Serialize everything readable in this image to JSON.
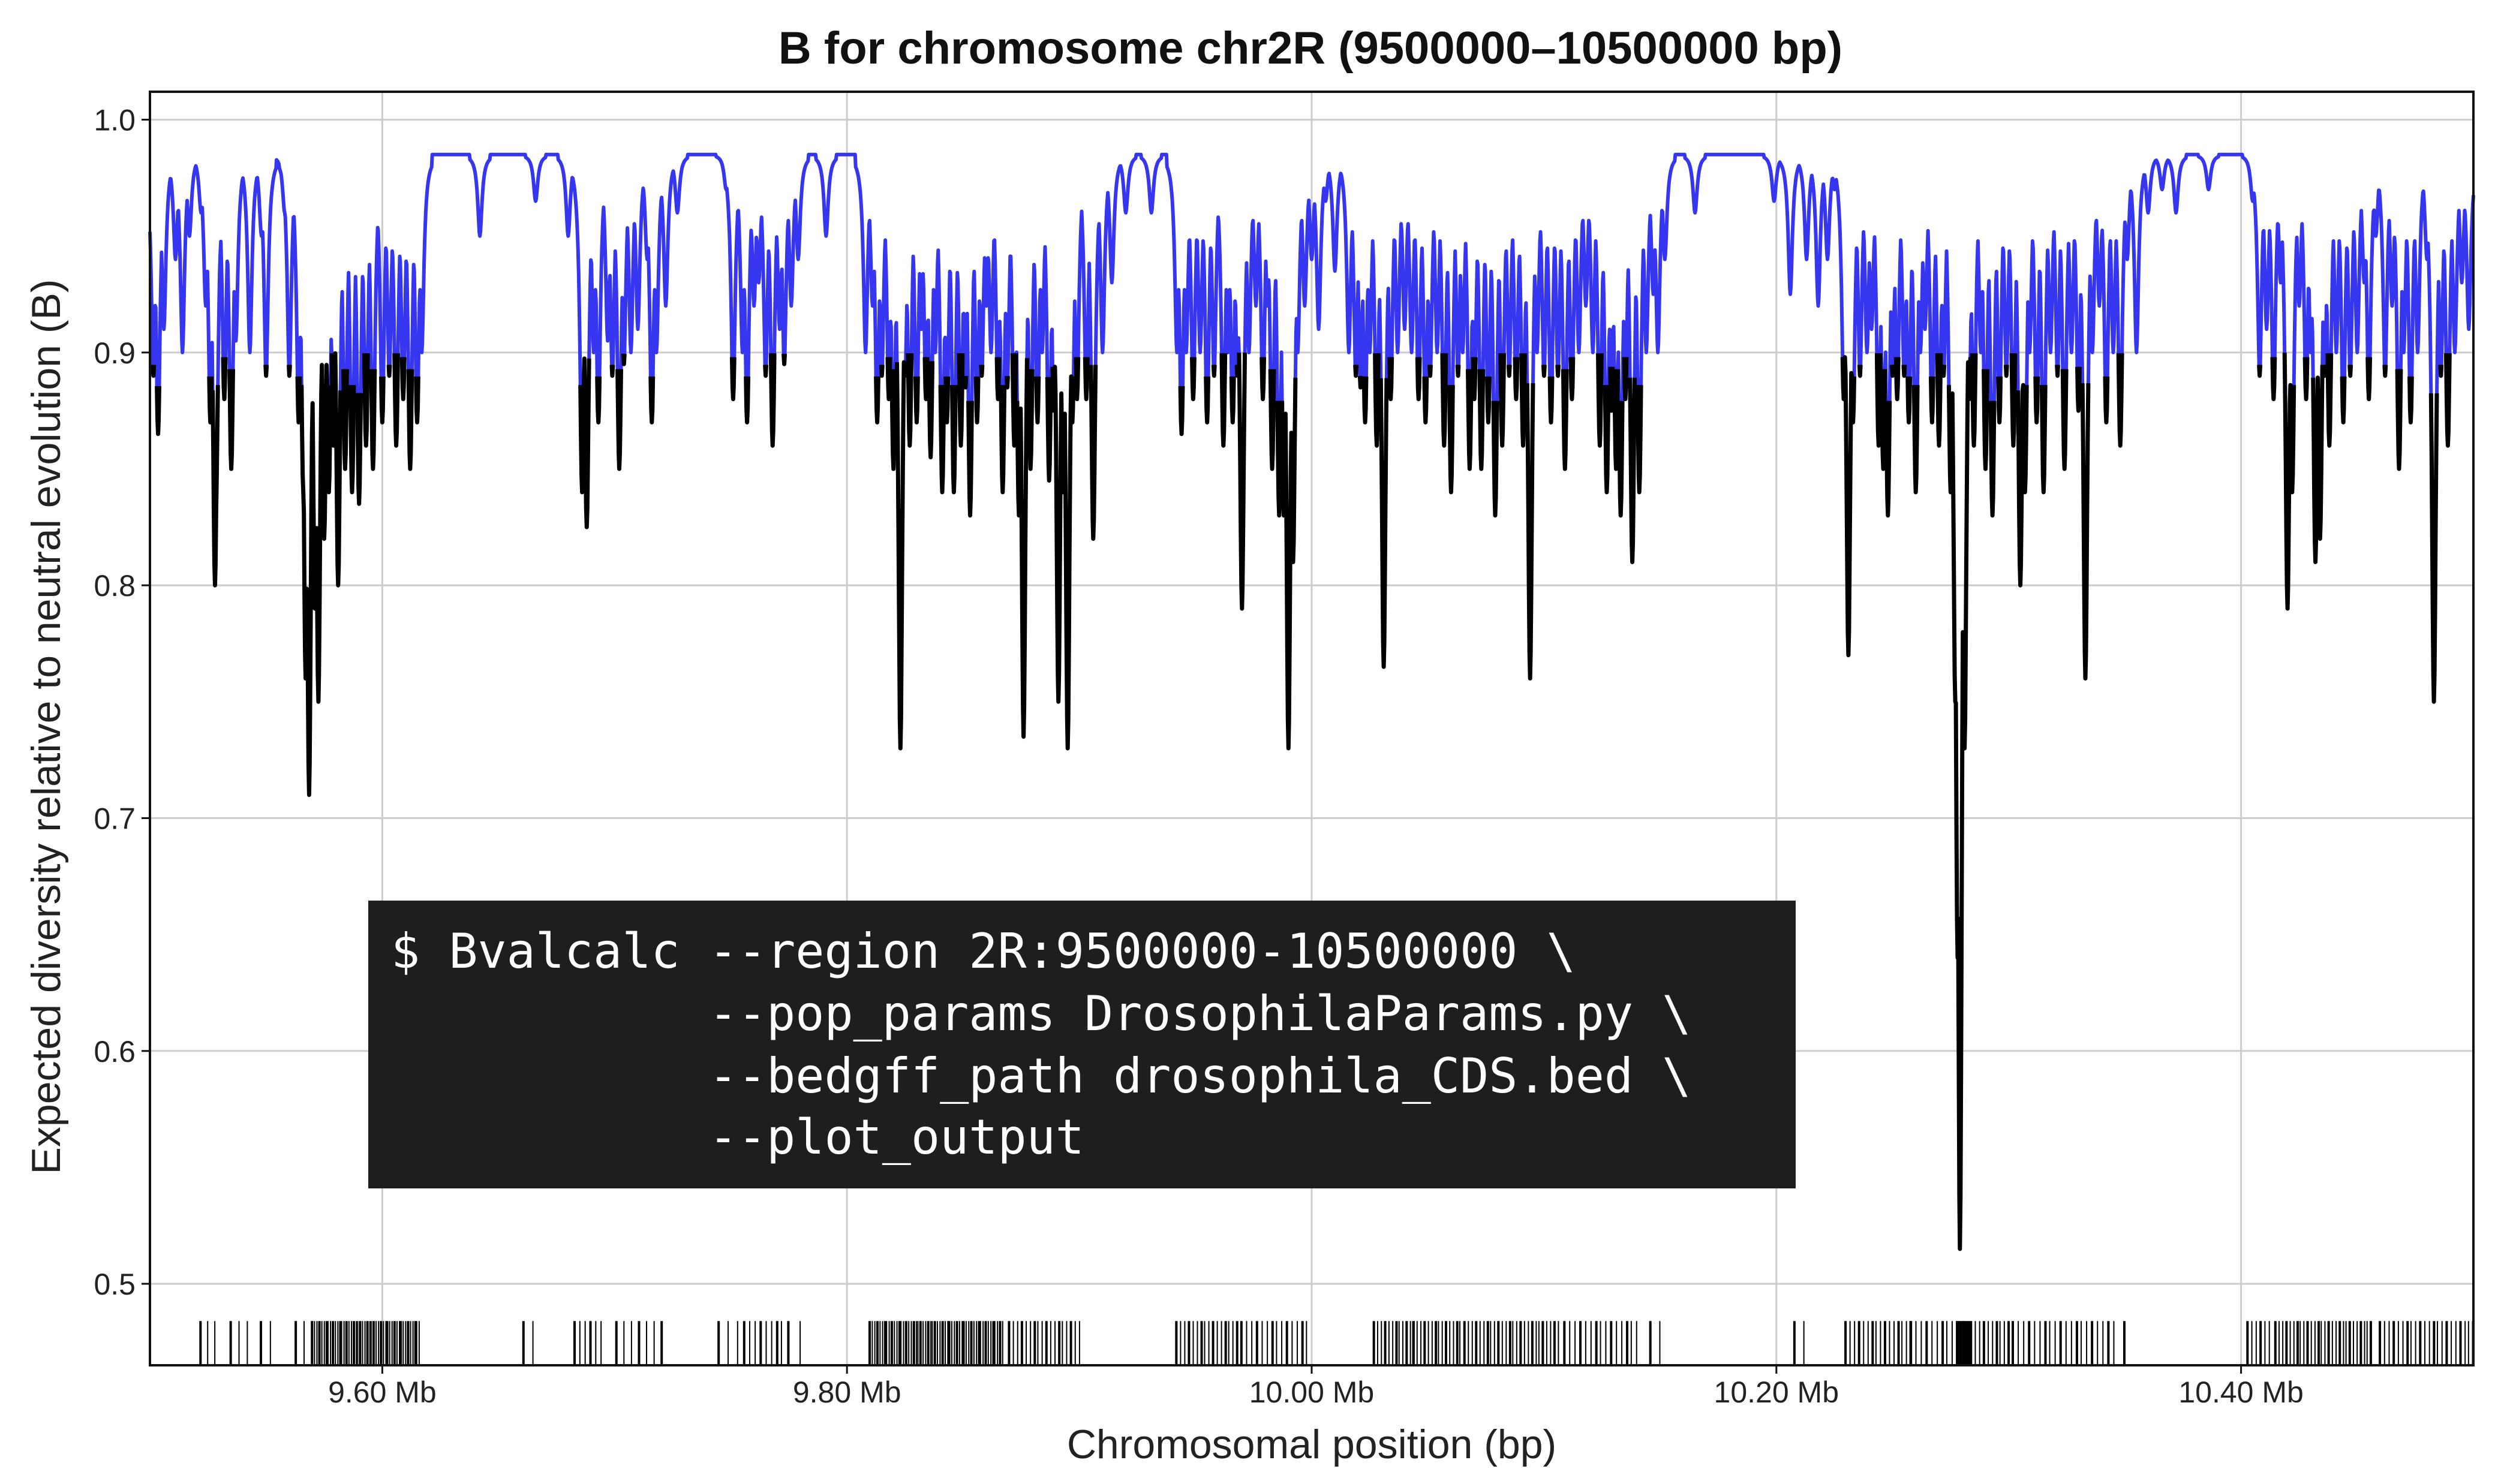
{
  "chart_data": {
    "type": "line",
    "title": "B for chromosome chr2R (9500000–10500000 bp)",
    "xlabel": "Chromosomal position (bp)",
    "ylabel": "Expected diversity relative to neutral evolution (B)",
    "xlim": [
      9500000,
      10500000
    ],
    "ylim": [
      0.465,
      1.012
    ],
    "grid": true,
    "x_ticks": [
      {
        "value": 9600000,
        "label": "9.60 Mb"
      },
      {
        "value": 9800000,
        "label": "9.80 Mb"
      },
      {
        "value": 10000000,
        "label": "10.00 Mb"
      },
      {
        "value": 10200000,
        "label": "10.20 Mb"
      },
      {
        "value": 10400000,
        "label": "10.40 Mb"
      }
    ],
    "y_ticks": [
      {
        "value": 0.5,
        "label": "0.5"
      },
      {
        "value": 0.6,
        "label": "0.6"
      },
      {
        "value": 0.7,
        "label": "0.7"
      },
      {
        "value": 0.8,
        "label": "0.8"
      },
      {
        "value": 0.9,
        "label": "0.9"
      },
      {
        "value": 1.0,
        "label": "1.0"
      }
    ],
    "colors": {
      "b_line": "#3636f0",
      "b_dip": "#000000",
      "cds_ticks": "#000000",
      "grid": "#cccccc"
    },
    "plateau": 0.985,
    "dips": [
      [
        9501500,
        0.89
      ],
      [
        9503500,
        0.865
      ],
      [
        9506000,
        0.91
      ],
      [
        9511000,
        0.94
      ],
      [
        9514000,
        0.9
      ],
      [
        9517000,
        0.95
      ],
      [
        9522000,
        0.96
      ],
      [
        9524000,
        0.92
      ],
      [
        9526000,
        0.87
      ],
      [
        9530000,
        0.94
      ],
      [
        9528500,
        0.84
      ],
      [
        9528000,
        0.8
      ],
      [
        9532000,
        0.88
      ],
      [
        9535000,
        0.85
      ],
      [
        9537000,
        0.905
      ],
      [
        9543000,
        0.9
      ],
      [
        9548000,
        0.95
      ],
      [
        9550000,
        0.89
      ],
      [
        9558000,
        0.96
      ],
      [
        9560000,
        0.89
      ],
      [
        9564000,
        0.87
      ],
      [
        9566000,
        0.84
      ],
      [
        9567000,
        0.76
      ],
      [
        9568500,
        0.71
      ],
      [
        9571000,
        0.79
      ],
      [
        9572500,
        0.75
      ],
      [
        9575000,
        0.82
      ],
      [
        9577000,
        0.84
      ],
      [
        9579000,
        0.86
      ],
      [
        9581000,
        0.8
      ],
      [
        9584000,
        0.85
      ],
      [
        9587000,
        0.84
      ],
      [
        9590000,
        0.835
      ],
      [
        9593000,
        0.86
      ],
      [
        9596000,
        0.85
      ],
      [
        9600000,
        0.87
      ],
      [
        9603000,
        0.89
      ],
      [
        9606000,
        0.86
      ],
      [
        9609000,
        0.88
      ],
      [
        9612000,
        0.85
      ],
      [
        9615000,
        0.87
      ],
      [
        9617000,
        0.9
      ],
      [
        9642000,
        0.95
      ],
      [
        9666000,
        0.965
      ],
      [
        9680000,
        0.95
      ],
      [
        9686000,
        0.84
      ],
      [
        9688000,
        0.825
      ],
      [
        9691000,
        0.9
      ],
      [
        9693000,
        0.87
      ],
      [
        9697000,
        0.905
      ],
      [
        9699000,
        0.89
      ],
      [
        9702000,
        0.85
      ],
      [
        9704000,
        0.895
      ],
      [
        9707000,
        0.9
      ],
      [
        9710000,
        0.91
      ],
      [
        9714000,
        0.94
      ],
      [
        9716000,
        0.87
      ],
      [
        9718000,
        0.9
      ],
      [
        9722000,
        0.92
      ],
      [
        9727000,
        0.96
      ],
      [
        9748000,
        0.97
      ],
      [
        9751000,
        0.88
      ],
      [
        9755000,
        0.9
      ],
      [
        9757000,
        0.87
      ],
      [
        9760000,
        0.92
      ],
      [
        9762000,
        0.93
      ],
      [
        9765000,
        0.89
      ],
      [
        9768000,
        0.86
      ],
      [
        9771000,
        0.91
      ],
      [
        9773000,
        0.895
      ],
      [
        9776000,
        0.92
      ],
      [
        9779000,
        0.94
      ],
      [
        9791000,
        0.95
      ],
      [
        9808000,
        0.9
      ],
      [
        9811000,
        0.92
      ],
      [
        9813000,
        0.87
      ],
      [
        9815000,
        0.89
      ],
      [
        9818000,
        0.88
      ],
      [
        9820000,
        0.85
      ],
      [
        9823000,
        0.73
      ],
      [
        9825000,
        0.89
      ],
      [
        9827000,
        0.86
      ],
      [
        9830000,
        0.87
      ],
      [
        9832000,
        0.91
      ],
      [
        9834000,
        0.88
      ],
      [
        9836000,
        0.855
      ],
      [
        9838000,
        0.9
      ],
      [
        9841000,
        0.84
      ],
      [
        9843000,
        0.87
      ],
      [
        9846000,
        0.84
      ],
      [
        9849000,
        0.86
      ],
      [
        9851000,
        0.885
      ],
      [
        9853000,
        0.83
      ],
      [
        9856000,
        0.87
      ],
      [
        9858000,
        0.89
      ],
      [
        9860000,
        0.92
      ],
      [
        9862000,
        0.9
      ],
      [
        9865000,
        0.88
      ],
      [
        9867000,
        0.84
      ],
      [
        9869000,
        0.885
      ],
      [
        9872000,
        0.86
      ],
      [
        9874000,
        0.83
      ],
      [
        9876000,
        0.735
      ],
      [
        9879000,
        0.85
      ],
      [
        9882000,
        0.87
      ],
      [
        9884000,
        0.9
      ],
      [
        9887000,
        0.845
      ],
      [
        9889000,
        0.875
      ],
      [
        9891000,
        0.75
      ],
      [
        9893000,
        0.84
      ],
      [
        9895000,
        0.73
      ],
      [
        9897000,
        0.87
      ],
      [
        9899000,
        0.88
      ],
      [
        9903000,
        0.88
      ],
      [
        9906000,
        0.82
      ],
      [
        9910000,
        0.9
      ],
      [
        9914000,
        0.93
      ],
      [
        9920000,
        0.96
      ],
      [
        9931000,
        0.96
      ],
      [
        9942000,
        0.9
      ],
      [
        9944000,
        0.865
      ],
      [
        9946000,
        0.9
      ],
      [
        9949000,
        0.88
      ],
      [
        9952000,
        0.9
      ],
      [
        9955000,
        0.87
      ],
      [
        9958000,
        0.89
      ],
      [
        9962000,
        0.86
      ],
      [
        9964000,
        0.9
      ],
      [
        9966000,
        0.87
      ],
      [
        9968000,
        0.89
      ],
      [
        9970000,
        0.79
      ],
      [
        9973000,
        0.9
      ],
      [
        9976000,
        0.92
      ],
      [
        9979000,
        0.88
      ],
      [
        9981000,
        0.92
      ],
      [
        9983000,
        0.85
      ],
      [
        9986000,
        0.83
      ],
      [
        9988000,
        0.83
      ],
      [
        9990000,
        0.73
      ],
      [
        9992000,
        0.81
      ],
      [
        9994000,
        0.9
      ],
      [
        9997000,
        0.92
      ],
      [
        10000000,
        0.94
      ],
      [
        10003000,
        0.91
      ],
      [
        10006000,
        0.965
      ],
      [
        10010000,
        0.935
      ],
      [
        10016000,
        0.9
      ],
      [
        10019000,
        0.89
      ],
      [
        10021000,
        0.885
      ],
      [
        10023000,
        0.87
      ],
      [
        10025000,
        0.9
      ],
      [
        10028000,
        0.86
      ],
      [
        10031000,
        0.765
      ],
      [
        10034000,
        0.88
      ],
      [
        10037000,
        0.9
      ],
      [
        10040000,
        0.91
      ],
      [
        10043000,
        0.9
      ],
      [
        10046000,
        0.88
      ],
      [
        10049000,
        0.87
      ],
      [
        10051000,
        0.89
      ],
      [
        10054000,
        0.9
      ],
      [
        10057000,
        0.86
      ],
      [
        10060000,
        0.84
      ],
      [
        10063000,
        0.89
      ],
      [
        10065000,
        0.9
      ],
      [
        10068000,
        0.85
      ],
      [
        10070000,
        0.88
      ],
      [
        10073000,
        0.85
      ],
      [
        10076000,
        0.87
      ],
      [
        10079000,
        0.83
      ],
      [
        10082000,
        0.86
      ],
      [
        10085000,
        0.89
      ],
      [
        10088000,
        0.88
      ],
      [
        10091000,
        0.86
      ],
      [
        10094000,
        0.76
      ],
      [
        10097000,
        0.9
      ],
      [
        10100000,
        0.89
      ],
      [
        10103000,
        0.87
      ],
      [
        10106000,
        0.89
      ],
      [
        10109000,
        0.85
      ],
      [
        10112000,
        0.88
      ],
      [
        10115000,
        0.9
      ],
      [
        10118000,
        0.92
      ],
      [
        10121000,
        0.9
      ],
      [
        10124000,
        0.86
      ],
      [
        10127000,
        0.84
      ],
      [
        10129000,
        0.875
      ],
      [
        10131000,
        0.85
      ],
      [
        10133000,
        0.83
      ],
      [
        10135000,
        0.88
      ],
      [
        10138000,
        0.81
      ],
      [
        10141000,
        0.84
      ],
      [
        10144000,
        0.9
      ],
      [
        10147000,
        0.925
      ],
      [
        10149000,
        0.9
      ],
      [
        10152000,
        0.94
      ],
      [
        10165000,
        0.96
      ],
      [
        10199000,
        0.965
      ],
      [
        10206000,
        0.925
      ],
      [
        10213000,
        0.94
      ],
      [
        10218000,
        0.92
      ],
      [
        10222000,
        0.94
      ],
      [
        10225000,
        0.97
      ],
      [
        10229000,
        0.88
      ],
      [
        10231000,
        0.77
      ],
      [
        10233000,
        0.87
      ],
      [
        10236000,
        0.89
      ],
      [
        10239000,
        0.9
      ],
      [
        10241000,
        0.91
      ],
      [
        10244000,
        0.86
      ],
      [
        10246000,
        0.85
      ],
      [
        10248000,
        0.83
      ],
      [
        10250000,
        0.89
      ],
      [
        10252000,
        0.88
      ],
      [
        10255000,
        0.89
      ],
      [
        10257000,
        0.87
      ],
      [
        10260000,
        0.84
      ],
      [
        10262000,
        0.9
      ],
      [
        10264000,
        0.91
      ],
      [
        10267000,
        0.87
      ],
      [
        10270000,
        0.86
      ],
      [
        10272000,
        0.89
      ],
      [
        10275000,
        0.84
      ],
      [
        10277000,
        0.75
      ],
      [
        10278000,
        0.64
      ],
      [
        10279000,
        0.515
      ],
      [
        10281000,
        0.73
      ],
      [
        10283000,
        0.88
      ],
      [
        10285000,
        0.86
      ],
      [
        10288000,
        0.9
      ],
      [
        10290000,
        0.85
      ],
      [
        10293000,
        0.83
      ],
      [
        10296000,
        0.87
      ],
      [
        10299000,
        0.89
      ],
      [
        10302000,
        0.86
      ],
      [
        10305000,
        0.8
      ],
      [
        10307000,
        0.84
      ],
      [
        10309000,
        0.9
      ],
      [
        10312000,
        0.87
      ],
      [
        10315000,
        0.84
      ],
      [
        10318000,
        0.9
      ],
      [
        10321000,
        0.89
      ],
      [
        10324000,
        0.85
      ],
      [
        10327000,
        0.9
      ],
      [
        10330000,
        0.875
      ],
      [
        10333000,
        0.76
      ],
      [
        10336000,
        0.9
      ],
      [
        10339000,
        0.92
      ],
      [
        10342000,
        0.87
      ],
      [
        10345000,
        0.9
      ],
      [
        10348000,
        0.86
      ],
      [
        10351000,
        0.94
      ],
      [
        10355000,
        0.9
      ],
      [
        10360000,
        0.96
      ],
      [
        10366000,
        0.97
      ],
      [
        10372000,
        0.96
      ],
      [
        10386000,
        0.97
      ],
      [
        10405000,
        0.965
      ],
      [
        10408000,
        0.89
      ],
      [
        10411000,
        0.91
      ],
      [
        10414000,
        0.88
      ],
      [
        10417000,
        0.93
      ],
      [
        10420000,
        0.79
      ],
      [
        10422000,
        0.84
      ],
      [
        10425000,
        0.92
      ],
      [
        10428000,
        0.88
      ],
      [
        10430000,
        0.9
      ],
      [
        10432000,
        0.81
      ],
      [
        10434000,
        0.82
      ],
      [
        10436000,
        0.89
      ],
      [
        10438000,
        0.86
      ],
      [
        10441000,
        0.9
      ],
      [
        10444000,
        0.87
      ],
      [
        10447000,
        0.89
      ],
      [
        10450000,
        0.9
      ],
      [
        10453000,
        0.93
      ],
      [
        10455000,
        0.88
      ],
      [
        10458000,
        0.95
      ],
      [
        10462000,
        0.89
      ],
      [
        10465000,
        0.92
      ],
      [
        10468000,
        0.85
      ],
      [
        10470000,
        0.9
      ],
      [
        10473000,
        0.87
      ],
      [
        10476000,
        0.9
      ],
      [
        10480000,
        0.94
      ],
      [
        10483000,
        0.75
      ],
      [
        10486000,
        0.89
      ],
      [
        10489000,
        0.86
      ],
      [
        10492000,
        0.9
      ],
      [
        10495000,
        0.93
      ],
      [
        10498000,
        0.91
      ]
    ],
    "cds_clusters": [
      [
        9522000,
        9528000,
        3
      ],
      [
        9535000,
        9542000,
        3
      ],
      [
        9548000,
        9552000,
        2
      ],
      [
        9563000,
        9570000,
        3
      ],
      [
        9570000,
        9616000,
        48
      ],
      [
        9661000,
        9665000,
        2
      ],
      [
        9683000,
        9694000,
        6
      ],
      [
        9701000,
        9720000,
        7
      ],
      [
        9745000,
        9753000,
        3
      ],
      [
        9756000,
        9772000,
        8
      ],
      [
        9775000,
        9780000,
        2
      ],
      [
        9810000,
        9867000,
        56
      ],
      [
        9870000,
        9900000,
        18
      ],
      [
        9942000,
        9968000,
        16
      ],
      [
        9970000,
        9998000,
        14
      ],
      [
        10027000,
        10044000,
        12
      ],
      [
        10044000,
        10064000,
        14
      ],
      [
        10066000,
        10106000,
        26
      ],
      [
        10109000,
        10140000,
        15
      ],
      [
        10146000,
        10150000,
        2
      ],
      [
        10208000,
        10212000,
        2
      ],
      [
        10230000,
        10258000,
        16
      ],
      [
        10258000,
        10278000,
        10
      ],
      [
        10278000,
        10283000,
        14
      ],
      [
        10284000,
        10300000,
        10
      ],
      [
        10302000,
        10345000,
        20
      ],
      [
        10350000,
        10352000,
        1
      ],
      [
        10403000,
        10412000,
        6
      ],
      [
        10415000,
        10456000,
        28
      ],
      [
        10460000,
        10500000,
        22
      ]
    ]
  },
  "terminal": {
    "lines": [
      "$ Bvalcalc --region 2R:9500000-10500000 \\",
      "           --pop_params DrosophilaParams.py \\",
      "           --bedgff_path drosophila_CDS.bed \\",
      "           --plot_output"
    ]
  }
}
